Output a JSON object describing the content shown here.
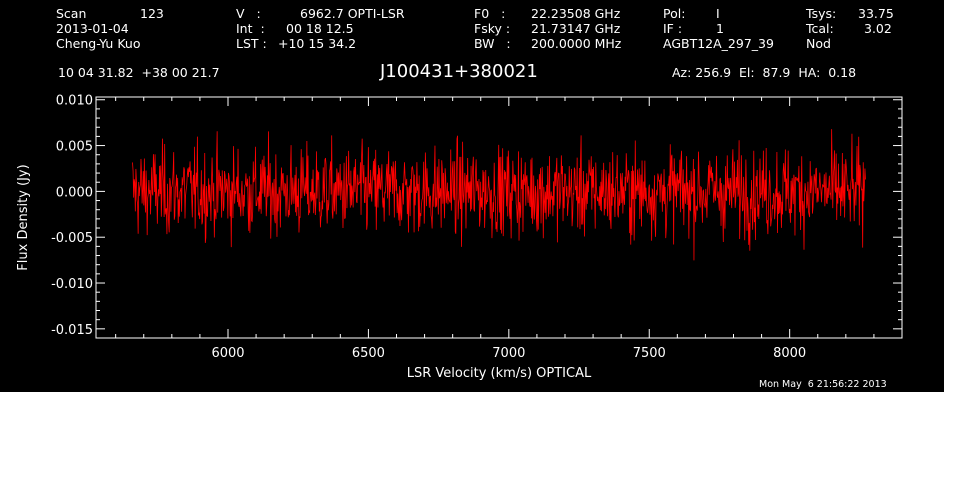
{
  "header": {
    "scan_label": "Scan",
    "scan_value": "123",
    "date": "2013-01-04",
    "observer": "Cheng-Yu Kuo",
    "v_label": "V   :",
    "v_value": "6962.7 OPTI-LSR",
    "int_label": "Int  :",
    "int_value": "00 18 12.5",
    "lst_label": "LST :",
    "lst_value": "+10 15 34.2",
    "f0_label": "F0   :",
    "f0_value": "22.23508 GHz",
    "fsky_label": "Fsky :",
    "fsky_value": "21.73147 GHz",
    "bw_label": "BW   :",
    "bw_value": "200.0000 MHz",
    "pol_label": "Pol:",
    "pol_value": "I",
    "if_label": "IF :",
    "if_value": "1",
    "project": "AGBT12A_297_39",
    "tsys_label": "Tsys:",
    "tsys_value": "33.75",
    "tcal_label": "Tcal:",
    "tcal_value": "3.02",
    "mode": "Nod",
    "coords": "10 04 31.82  +38 00 21.7",
    "source": "J100431+380021",
    "az_el_ha": "Az: 256.9  El:  87.9  HA:  0.18",
    "timestamp": "Mon May  6 21:56:22 2013"
  },
  "colors": {
    "background": "#000000",
    "foreground": "#ffffff",
    "trace": "#ff0000"
  },
  "chart_data": {
    "type": "line",
    "xlabel": "LSR Velocity (km/s) OPTICAL",
    "ylabel": "Flux Density (Jy)",
    "xlim": [
      5530,
      8400
    ],
    "ylim": [
      -0.016,
      0.0103
    ],
    "xticks": [
      6000,
      6500,
      7000,
      7500,
      8000
    ],
    "xtick_labels": [
      "6000",
      "6500",
      "7000",
      "7500",
      "8000"
    ],
    "yticks": [
      -0.015,
      -0.01,
      -0.005,
      0.0,
      0.005,
      0.01
    ],
    "ytick_labels": [
      "-0.015",
      "-0.010",
      "-0.005",
      "0.000",
      "0.005",
      "0.010"
    ],
    "grid": false,
    "series": [
      {
        "color": "#ff0000",
        "x_start": 5660,
        "x_end": 8270,
        "mean": 0.0,
        "rms": 0.0025,
        "min": -0.0098,
        "max": 0.0093,
        "note_data": "noise-dominated spectrum, no detected line"
      }
    ]
  }
}
